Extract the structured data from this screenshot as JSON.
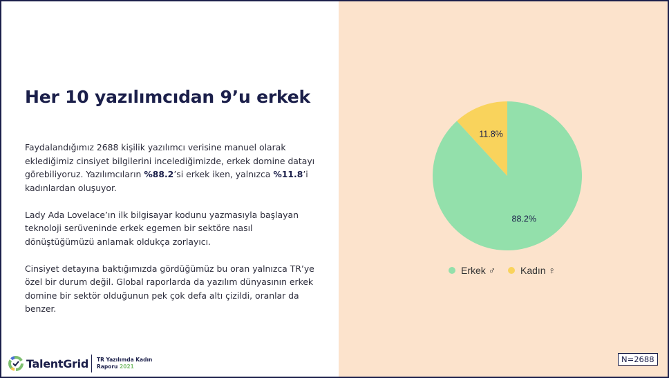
{
  "title": "Her 10 yazılımcıdan 9’u erkek",
  "paragraphs": {
    "p1_a": "Faydalandığımız 2688 kişilik yazılımcı verisine manuel olarak eklediğimiz cinsiyet bilgilerini incelediğimizde, erkek domine datayı görebiliyoruz. Yazılımcıların ",
    "p1_b": "%88.2",
    "p1_c": "’si erkek iken, yalnızca ",
    "p1_d": "%11.8",
    "p1_e": "’i kadınlardan oluşuyor.",
    "p2": "Lady Ada Lovelace’ın ilk bilgisayar kodunu yazmasıyla başlayan teknoloji serüveninde erkek egemen bir sektöre nasıl dönüştüğümüzü anlamak oldukça zorlayıcı.",
    "p3": "Cinsiyet detayına baktığımızda gördüğümüz bu oran yalnızca TR’ye özel bir durum değil. Global raporlarda da yazılım dünyasının erkek domine bir sektör olduğunun pek çok defa altı çizildi, oranlar da benzer."
  },
  "chart_data": {
    "type": "pie",
    "slices": [
      {
        "name": "Erkek ♂",
        "value": 88.2,
        "label": "88.2%",
        "color": "#93e0ab"
      },
      {
        "name": "Kadın ♀",
        "value": 11.8,
        "label": "11.8%",
        "color": "#f9d35c"
      }
    ],
    "legend": "bottom"
  },
  "footer": {
    "brand": "TalentGrid",
    "report_line1": "TR Yazılımda Kadın",
    "report_line2": "Raporu",
    "report_year": "2021",
    "sample_size": "N=2688"
  },
  "colors": {
    "navy": "#1b1f4a",
    "panel": "#fce3cc",
    "green": "#93e0ab",
    "yellow": "#f9d35c"
  }
}
